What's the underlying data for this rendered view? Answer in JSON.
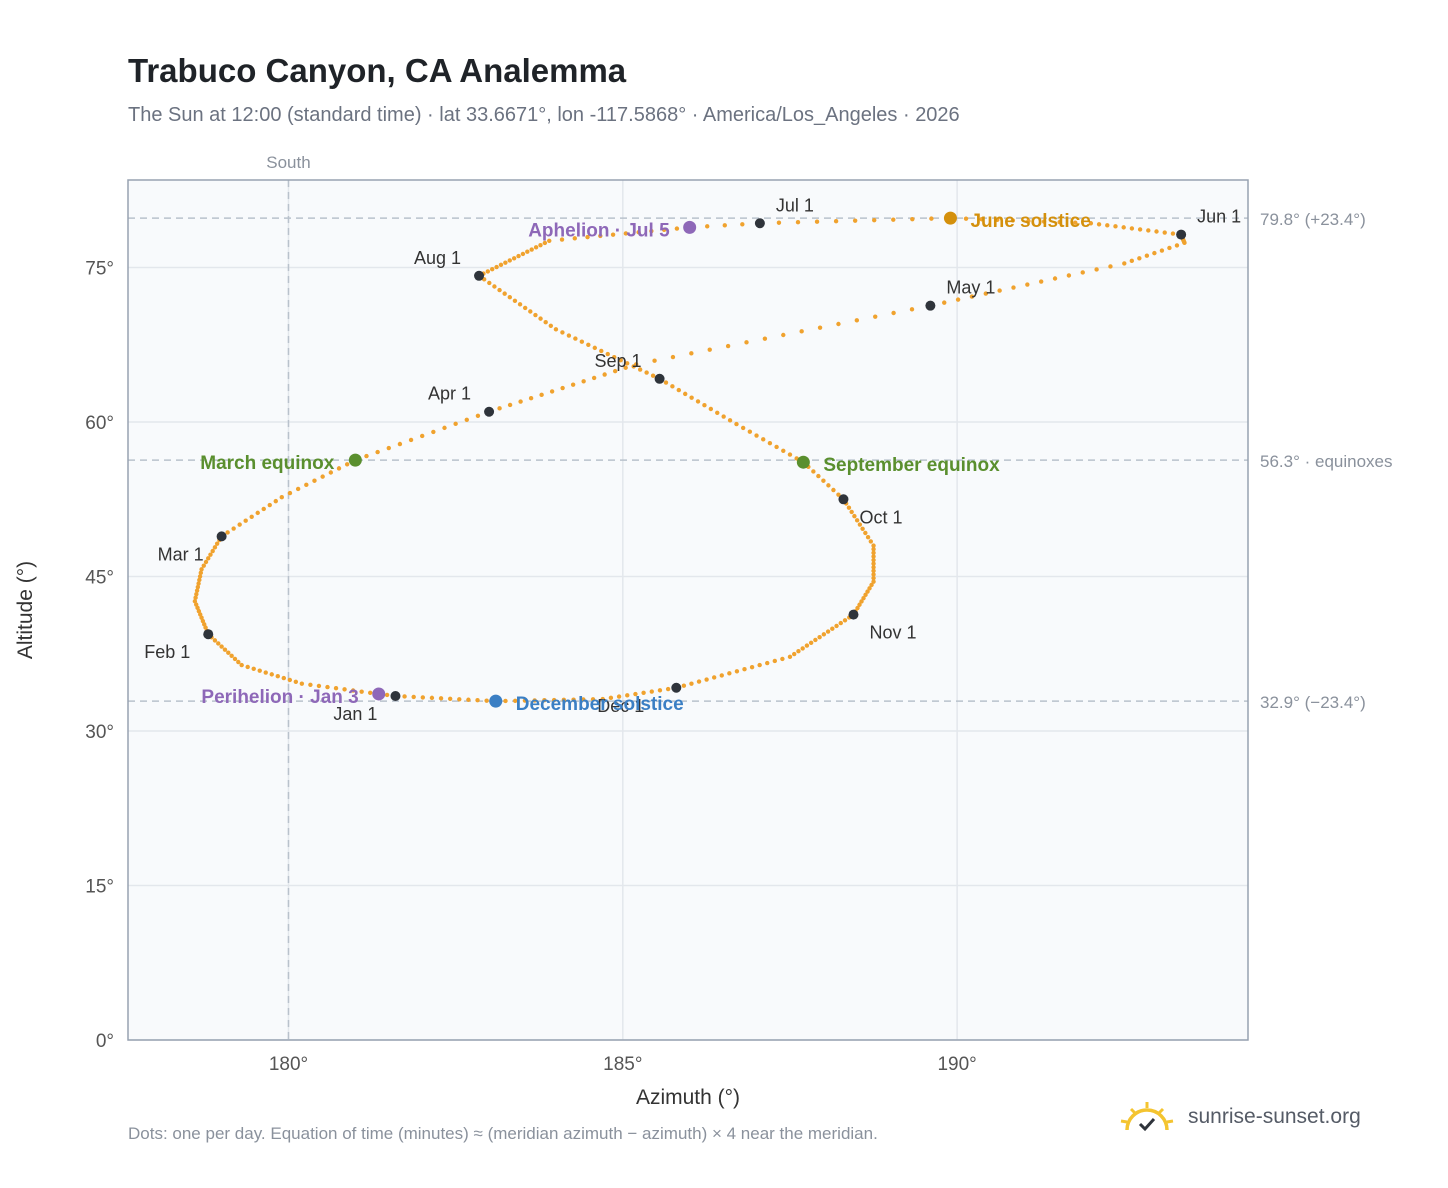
{
  "header": {
    "title": "Trabuco Canyon, CA Analemma",
    "subtitle": "The Sun at 12:00 (standard time) · lat 33.6671°, lon -117.5868° · America/Los_Angeles · 2026"
  },
  "footer": {
    "note": "Dots: one per day. Equation of time (minutes) ≈ (meridian azimuth − azimuth) × 4 near the meridian.",
    "brand": "sunrise-sunset.org",
    "brand_icon": "sunrise-logo-icon"
  },
  "colors": {
    "analemma": "#f0a22e",
    "month_marker": "#2f343b",
    "equinox": "#5a8f2e",
    "june_solstice": "#d4900c",
    "december_solstice": "#3b7fc4",
    "apsis": "#8e68b8",
    "grid": "#e3e7ec",
    "reference": "#b9c2cc",
    "plot_bg": "#f8fafc",
    "plot_border": "#97a2b1"
  },
  "chart_data": {
    "type": "scatter",
    "xlabel": "Azimuth (°)",
    "ylabel": "Altitude (°)",
    "xlim": [
      177.6,
      194.35
    ],
    "ylim": [
      0,
      83.5
    ],
    "x_ticks": [
      180,
      185,
      190
    ],
    "x_tick_labels": [
      "180°",
      "185°",
      "190°"
    ],
    "y_ticks": [
      0,
      15,
      30,
      45,
      60,
      75
    ],
    "y_tick_labels": [
      "0°",
      "15°",
      "30°",
      "45°",
      "60°",
      "75°"
    ],
    "grid": true,
    "south_line": {
      "x": 180,
      "label": "South"
    },
    "reference_lines": [
      {
        "y": 79.8,
        "label": "79.8° (+23.4°)"
      },
      {
        "y": 56.3,
        "label": "56.3° · equinoxes"
      },
      {
        "y": 32.9,
        "label": "32.9° (−23.4°)"
      }
    ],
    "analemma_anchors": [
      {
        "day": 1,
        "x": 181.6,
        "y": 33.4
      },
      {
        "day": 3,
        "x": 181.35,
        "y": 33.6
      },
      {
        "day": 12,
        "x": 180.2,
        "y": 34.6
      },
      {
        "day": 22,
        "x": 179.3,
        "y": 36.4
      },
      {
        "day": 32,
        "x": 178.8,
        "y": 39.4
      },
      {
        "day": 42,
        "x": 178.6,
        "y": 42.6
      },
      {
        "day": 51,
        "x": 178.7,
        "y": 45.7
      },
      {
        "day": 60,
        "x": 179.0,
        "y": 48.9
      },
      {
        "day": 70,
        "x": 179.9,
        "y": 52.7
      },
      {
        "day": 79,
        "x": 181.0,
        "y": 56.3
      },
      {
        "day": 91,
        "x": 183.0,
        "y": 61.0
      },
      {
        "day": 105,
        "x": 185.2,
        "y": 65.6
      },
      {
        "day": 121,
        "x": 189.6,
        "y": 71.3
      },
      {
        "day": 135,
        "x": 192.5,
        "y": 75.4
      },
      {
        "day": 143,
        "x": 193.4,
        "y": 77.4
      },
      {
        "day": 152,
        "x": 193.35,
        "y": 78.2
      },
      {
        "day": 163,
        "x": 192.0,
        "y": 79.3
      },
      {
        "day": 172,
        "x": 189.9,
        "y": 79.8
      },
      {
        "day": 182,
        "x": 187.05,
        "y": 79.3
      },
      {
        "day": 186,
        "x": 186.0,
        "y": 78.9
      },
      {
        "day": 197,
        "x": 183.9,
        "y": 77.6
      },
      {
        "day": 213,
        "x": 182.85,
        "y": 74.2
      },
      {
        "day": 228,
        "x": 184.0,
        "y": 69.0
      },
      {
        "day": 244,
        "x": 185.55,
        "y": 64.2
      },
      {
        "day": 256,
        "x": 186.7,
        "y": 59.8
      },
      {
        "day": 266,
        "x": 187.7,
        "y": 56.1
      },
      {
        "day": 274,
        "x": 188.3,
        "y": 52.5
      },
      {
        "day": 285,
        "x": 188.75,
        "y": 48.0
      },
      {
        "day": 295,
        "x": 188.75,
        "y": 44.5
      },
      {
        "day": 305,
        "x": 188.45,
        "y": 41.3
      },
      {
        "day": 320,
        "x": 187.5,
        "y": 37.2
      },
      {
        "day": 335,
        "x": 185.8,
        "y": 34.2
      },
      {
        "day": 344,
        "x": 184.7,
        "y": 33.1
      },
      {
        "day": 355,
        "x": 183.1,
        "y": 32.9
      },
      {
        "day": 366,
        "x": 181.6,
        "y": 33.4
      }
    ],
    "month_markers": [
      {
        "label": "Jan 1",
        "x": 181.6,
        "y": 33.4,
        "anchor": "end",
        "dx": -18,
        "dy": 24
      },
      {
        "label": "Feb 1",
        "x": 178.8,
        "y": 39.4,
        "anchor": "end",
        "dx": -18,
        "dy": 24
      },
      {
        "label": "Mar 1",
        "x": 179.0,
        "y": 48.9,
        "anchor": "end",
        "dx": -18,
        "dy": 24
      },
      {
        "label": "Apr 1",
        "x": 183.0,
        "y": 61.0,
        "anchor": "end",
        "dx": -18,
        "dy": -12
      },
      {
        "label": "May 1",
        "x": 189.6,
        "y": 71.3,
        "anchor": "start",
        "dx": 16,
        "dy": -12
      },
      {
        "label": "Jun 1",
        "x": 193.35,
        "y": 78.2,
        "anchor": "start",
        "dx": 16,
        "dy": -12
      },
      {
        "label": "Jul 1",
        "x": 187.05,
        "y": 79.3,
        "anchor": "start",
        "dx": 16,
        "dy": -12
      },
      {
        "label": "Aug 1",
        "x": 182.85,
        "y": 74.2,
        "anchor": "end",
        "dx": -18,
        "dy": -12
      },
      {
        "label": "Sep 1",
        "x": 185.55,
        "y": 64.2,
        "anchor": "end",
        "dx": -18,
        "dy": -12
      },
      {
        "label": "Oct 1",
        "x": 188.3,
        "y": 52.5,
        "anchor": "start",
        "dx": 16,
        "dy": 24
      },
      {
        "label": "Nov 1",
        "x": 188.45,
        "y": 41.3,
        "anchor": "start",
        "dx": 16,
        "dy": 24
      },
      {
        "label": "Dec 1",
        "x": 185.8,
        "y": 34.2,
        "anchor": "end",
        "dx": -32,
        "dy": 24
      }
    ],
    "events": [
      {
        "label": "March equinox",
        "x": 181.0,
        "y": 56.3,
        "color": "#5a8f2e",
        "anchor": "end",
        "dx": -21,
        "dy": 9
      },
      {
        "label": "September equinox",
        "x": 187.7,
        "y": 56.1,
        "color": "#5a8f2e",
        "anchor": "start",
        "dx": 20,
        "dy": 9
      },
      {
        "label": "June solstice",
        "x": 189.9,
        "y": 79.8,
        "color": "#d4900c",
        "anchor": "start",
        "dx": 20,
        "dy": 9
      },
      {
        "label": "December solstice",
        "x": 183.1,
        "y": 32.9,
        "color": "#3b7fc4",
        "anchor": "start",
        "dx": 20,
        "dy": 9
      },
      {
        "label": "Perihelion · Jan 3",
        "x": 181.35,
        "y": 33.6,
        "color": "#8e68b8",
        "anchor": "end",
        "dx": -20,
        "dy": 9
      },
      {
        "label": "Aphelion · Jul 5",
        "x": 186.0,
        "y": 78.9,
        "color": "#8e68b8",
        "anchor": "end",
        "dx": -20,
        "dy": 9
      }
    ]
  }
}
